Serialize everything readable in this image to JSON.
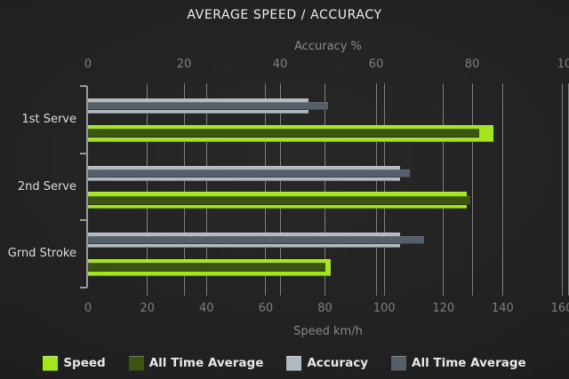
{
  "chart_data": {
    "type": "bar",
    "orientation": "horizontal",
    "title": "AVERAGE SPEED / ACCURACY",
    "categories": [
      "1st Serve",
      "2nd Serve",
      "Grnd Stroke"
    ],
    "series": [
      {
        "name": "Speed",
        "scale": "speed",
        "color": "#a4e51c",
        "values": [
          137,
          128,
          82
        ]
      },
      {
        "name": "All Time Average",
        "scale": "speed",
        "color": "#3b540f",
        "values": [
          132,
          129,
          80
        ]
      },
      {
        "name": "Accuracy",
        "scale": "accuracy",
        "color": "#b1b9c1",
        "values": [
          46,
          65,
          65
        ]
      },
      {
        "name": "All Time Average",
        "scale": "accuracy",
        "color": "#565e68",
        "values": [
          50,
          67,
          70
        ]
      }
    ],
    "top_axis": {
      "label": "Accuracy %",
      "min": 0,
      "max": 100,
      "ticks": [
        0,
        20,
        40,
        60,
        80,
        100
      ]
    },
    "bottom_axis": {
      "label": "Speed km/h",
      "min": 0,
      "max": 160,
      "ticks": [
        0,
        20,
        40,
        60,
        80,
        100,
        120,
        140,
        160
      ]
    },
    "grid": true,
    "legend_position": "bottom"
  },
  "colors": {
    "background_center": "#282828",
    "background_edge": "#151515",
    "grid_line": "#8f8f8f",
    "axis_line": "#9a9a9a",
    "title_text": "#f0f0f0",
    "tick_text": "#7f7f7f",
    "axis_label_text": "#8a8a8a",
    "category_text": "#dcdcdc",
    "legend_text": "#e8e8e8",
    "speed_bar": "#a4e51c",
    "speed_avg_bar": "#3b540f",
    "accuracy_bar": "#b1b9c1",
    "accuracy_avg_bar": "#565e68"
  }
}
